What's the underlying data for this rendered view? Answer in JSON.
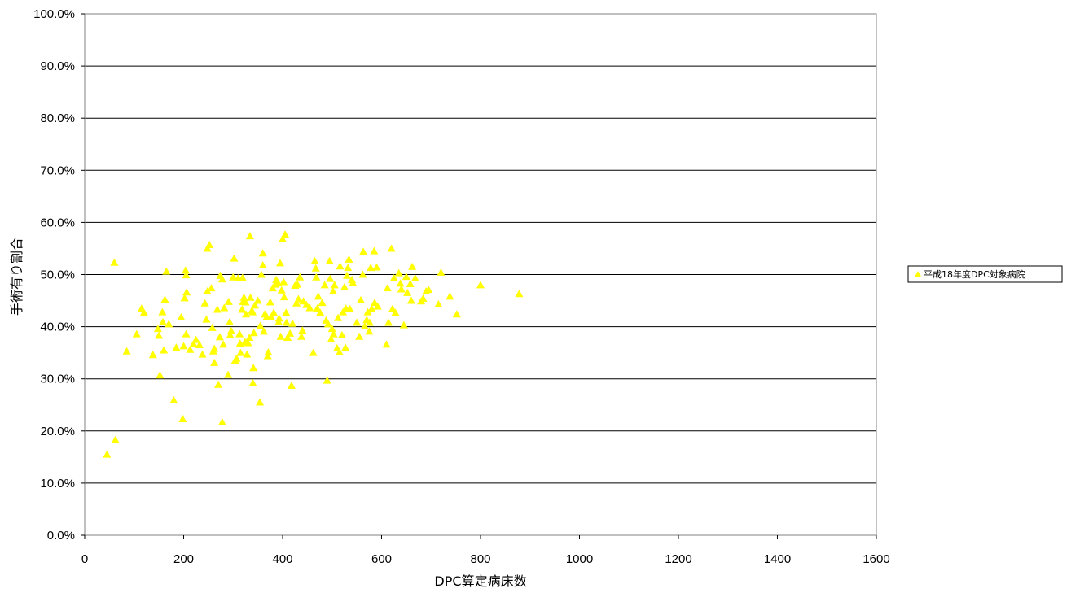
{
  "chart_data": {
    "type": "scatter",
    "xlabel": "DPC算定病床数",
    "ylabel": "手術有り割合",
    "xlim": [
      0,
      1600
    ],
    "ylim": [
      0,
      100
    ],
    "x_ticks": [
      "0",
      "200",
      "400",
      "600",
      "800",
      "1000",
      "1200",
      "1400",
      "1600"
    ],
    "y_ticks": [
      "0.0%",
      "10.0%",
      "20.0%",
      "30.0%",
      "40.0%",
      "50.0%",
      "60.0%",
      "70.0%",
      "80.0%",
      "90.0%",
      "100.0%"
    ],
    "grid": "horizontal",
    "legend_position": "right",
    "series": [
      {
        "name": "平成18年度DPC対象病院",
        "marker": "triangle",
        "color": "#ffff00",
        "points": [
          [
            45,
            15.5
          ],
          [
            62,
            18.3
          ],
          [
            60,
            52.3
          ],
          [
            85,
            35.3
          ],
          [
            105,
            38.6
          ],
          [
            115,
            43.5
          ],
          [
            120,
            42.7
          ],
          [
            138,
            34.6
          ],
          [
            148,
            39.6
          ],
          [
            150,
            38.3
          ],
          [
            152,
            30.7
          ],
          [
            157,
            42.8
          ],
          [
            158,
            40.9
          ],
          [
            160,
            35.5
          ],
          [
            162,
            45.2
          ],
          [
            165,
            50.6
          ],
          [
            170,
            40.5
          ],
          [
            180,
            25.9
          ],
          [
            185,
            36.0
          ],
          [
            195,
            41.8
          ],
          [
            198,
            22.3
          ],
          [
            200,
            36.3
          ],
          [
            202,
            45.5
          ],
          [
            204,
            50.8
          ],
          [
            205,
            49.9
          ],
          [
            205,
            38.6
          ],
          [
            206,
            46.6
          ],
          [
            213,
            35.6
          ],
          [
            220,
            36.7
          ],
          [
            225,
            37.5
          ],
          [
            232,
            36.5
          ],
          [
            238,
            34.7
          ],
          [
            243,
            44.5
          ],
          [
            246,
            41.4
          ],
          [
            248,
            46.8
          ],
          [
            248,
            55.0
          ],
          [
            252,
            55.7
          ],
          [
            256,
            47.4
          ],
          [
            258,
            39.8
          ],
          [
            260,
            35.3
          ],
          [
            262,
            33.1
          ],
          [
            262,
            35.8
          ],
          [
            268,
            43.3
          ],
          [
            270,
            28.9
          ],
          [
            273,
            38.0
          ],
          [
            274,
            49.8
          ],
          [
            278,
            21.7
          ],
          [
            278,
            49.1
          ],
          [
            280,
            36.6
          ],
          [
            282,
            43.6
          ],
          [
            290,
            30.8
          ],
          [
            291,
            44.8
          ],
          [
            293,
            40.9
          ],
          [
            294,
            38.4
          ],
          [
            296,
            39.2
          ],
          [
            300,
            49.5
          ],
          [
            302,
            53.1
          ],
          [
            304,
            33.5
          ],
          [
            307,
            33.9
          ],
          [
            310,
            49.3
          ],
          [
            313,
            38.6
          ],
          [
            314,
            36.8
          ],
          [
            315,
            35.0
          ],
          [
            318,
            43.3
          ],
          [
            319,
            49.4
          ],
          [
            320,
            44.8
          ],
          [
            322,
            45.6
          ],
          [
            324,
            37.1
          ],
          [
            325,
            44.7
          ],
          [
            326,
            42.4
          ],
          [
            328,
            34.7
          ],
          [
            330,
            36.9
          ],
          [
            333,
            37.9
          ],
          [
            334,
            57.4
          ],
          [
            335,
            45.6
          ],
          [
            338,
            43.1
          ],
          [
            339,
            42.8
          ],
          [
            340,
            29.2
          ],
          [
            341,
            32.1
          ],
          [
            342,
            38.8
          ],
          [
            344,
            44.1
          ],
          [
            350,
            45.0
          ],
          [
            354,
            25.5
          ],
          [
            355,
            40.2
          ],
          [
            357,
            50.0
          ],
          [
            360,
            54.1
          ],
          [
            360,
            51.8
          ],
          [
            362,
            39.1
          ],
          [
            364,
            42.4
          ],
          [
            368,
            41.9
          ],
          [
            370,
            34.4
          ],
          [
            371,
            35.1
          ],
          [
            375,
            44.7
          ],
          [
            377,
            41.8
          ],
          [
            380,
            47.4
          ],
          [
            382,
            42.7
          ],
          [
            385,
            48.1
          ],
          [
            387,
            49.0
          ],
          [
            390,
            48.5
          ],
          [
            392,
            40.9
          ],
          [
            393,
            41.6
          ],
          [
            395,
            52.2
          ],
          [
            396,
            38.1
          ],
          [
            398,
            47.0
          ],
          [
            400,
            56.8
          ],
          [
            402,
            48.6
          ],
          [
            403,
            45.7
          ],
          [
            405,
            57.7
          ],
          [
            407,
            42.7
          ],
          [
            408,
            40.8
          ],
          [
            410,
            37.9
          ],
          [
            415,
            38.7
          ],
          [
            418,
            28.7
          ],
          [
            420,
            40.6
          ],
          [
            425,
            47.9
          ],
          [
            428,
            44.5
          ],
          [
            430,
            48.1
          ],
          [
            432,
            45.3
          ],
          [
            435,
            49.5
          ],
          [
            438,
            38.1
          ],
          [
            440,
            39.3
          ],
          [
            442,
            44.9
          ],
          [
            448,
            44.2
          ],
          [
            455,
            43.6
          ],
          [
            462,
            35.0
          ],
          [
            465,
            52.6
          ],
          [
            467,
            51.2
          ],
          [
            468,
            49.5
          ],
          [
            470,
            43.5
          ],
          [
            472,
            45.8
          ],
          [
            476,
            42.7
          ],
          [
            480,
            44.6
          ],
          [
            485,
            48.0
          ],
          [
            488,
            41.2
          ],
          [
            490,
            29.7
          ],
          [
            492,
            40.5
          ],
          [
            495,
            52.6
          ],
          [
            496,
            49.2
          ],
          [
            498,
            37.6
          ],
          [
            500,
            39.6
          ],
          [
            502,
            46.8
          ],
          [
            503,
            38.6
          ],
          [
            505,
            48.0
          ],
          [
            510,
            35.9
          ],
          [
            512,
            41.7
          ],
          [
            515,
            35.1
          ],
          [
            516,
            51.6
          ],
          [
            520,
            38.4
          ],
          [
            522,
            42.8
          ],
          [
            525,
            47.6
          ],
          [
            527,
            36.0
          ],
          [
            528,
            43.5
          ],
          [
            530,
            49.8
          ],
          [
            532,
            51.3
          ],
          [
            534,
            52.9
          ],
          [
            536,
            43.4
          ],
          [
            540,
            49.0
          ],
          [
            542,
            48.4
          ],
          [
            550,
            40.8
          ],
          [
            555,
            38.1
          ],
          [
            558,
            45.1
          ],
          [
            562,
            50.0
          ],
          [
            563,
            54.4
          ],
          [
            566,
            40.1
          ],
          [
            570,
            41.3
          ],
          [
            572,
            42.8
          ],
          [
            575,
            39.1
          ],
          [
            576,
            40.8
          ],
          [
            578,
            51.3
          ],
          [
            580,
            43.4
          ],
          [
            585,
            54.5
          ],
          [
            586,
            44.6
          ],
          [
            590,
            51.4
          ],
          [
            592,
            43.9
          ],
          [
            610,
            36.6
          ],
          [
            612,
            47.4
          ],
          [
            614,
            40.8
          ],
          [
            620,
            55.0
          ],
          [
            622,
            43.4
          ],
          [
            625,
            49.3
          ],
          [
            628,
            42.7
          ],
          [
            635,
            50.3
          ],
          [
            638,
            48.3
          ],
          [
            640,
            47.2
          ],
          [
            645,
            40.3
          ],
          [
            650,
            49.6
          ],
          [
            652,
            46.5
          ],
          [
            658,
            48.2
          ],
          [
            660,
            45.0
          ],
          [
            662,
            51.5
          ],
          [
            668,
            49.3
          ],
          [
            680,
            44.9
          ],
          [
            684,
            45.4
          ],
          [
            690,
            46.8
          ],
          [
            695,
            47.1
          ],
          [
            715,
            44.3
          ],
          [
            720,
            50.4
          ],
          [
            738,
            45.8
          ],
          [
            752,
            42.4
          ],
          [
            800,
            48.0
          ],
          [
            878,
            46.3
          ]
        ]
      }
    ]
  }
}
